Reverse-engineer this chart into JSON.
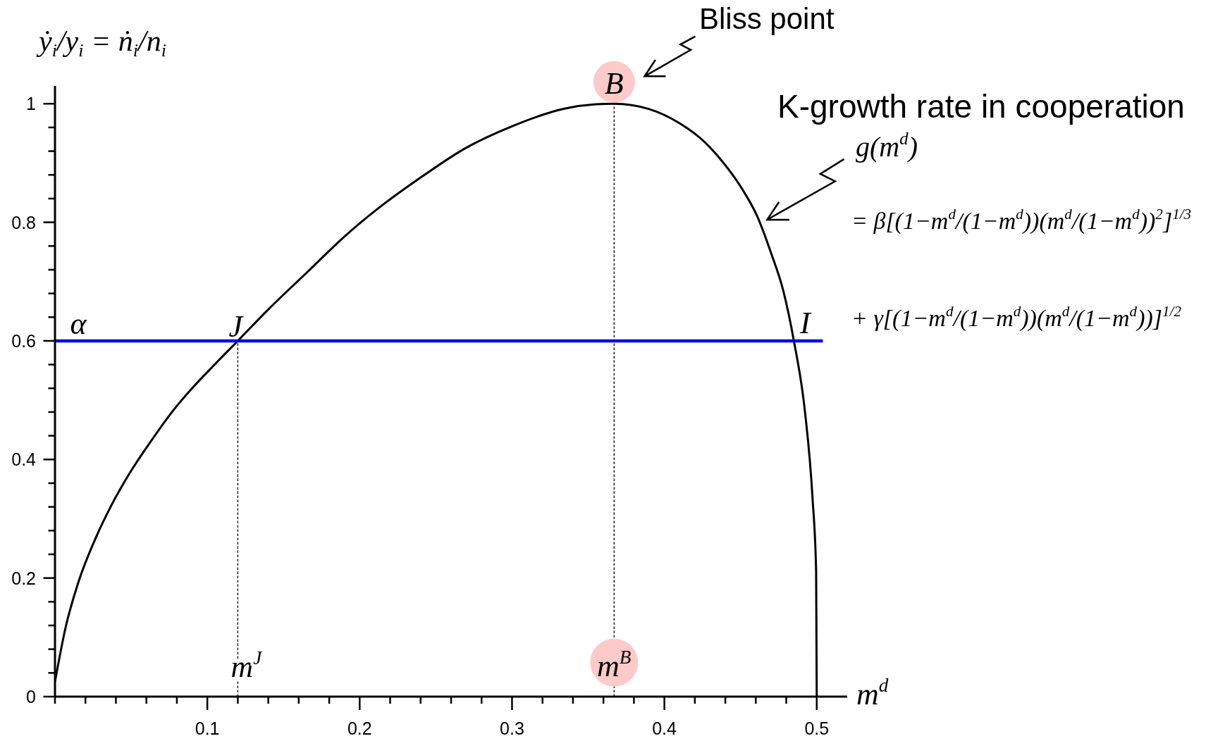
{
  "chart_data": {
    "type": "line",
    "xlabel": "m$^{d}$",
    "ylabel": "ẏ$_{i}$/y$_{i}$ = ṅ$_{i}$/n$_{i}$",
    "xlim": [
      0,
      0.52
    ],
    "ylim": [
      0,
      1.03
    ],
    "xticks": [
      {
        "value": 0,
        "label": null
      },
      {
        "value": 0.02,
        "label": null
      },
      {
        "value": 0.04,
        "label": null
      },
      {
        "value": 0.06,
        "label": null
      },
      {
        "value": 0.08,
        "label": null
      },
      0.1,
      {
        "value": 0.12,
        "label": null
      },
      {
        "value": 0.14,
        "label": null
      },
      {
        "value": 0.16,
        "label": null
      },
      {
        "value": 0.18,
        "label": null
      },
      0.2,
      {
        "value": 0.22,
        "label": null
      },
      {
        "value": 0.24,
        "label": null
      },
      {
        "value": 0.26,
        "label": null
      },
      {
        "value": 0.28,
        "label": null
      },
      0.3,
      {
        "value": 0.32,
        "label": null
      },
      {
        "value": 0.34,
        "label": null
      },
      {
        "value": 0.36,
        "label": null
      },
      {
        "value": 0.38,
        "label": null
      },
      0.4,
      {
        "value": 0.42,
        "label": null
      },
      {
        "value": 0.44,
        "label": null
      },
      {
        "value": 0.46,
        "label": null
      },
      {
        "value": 0.48,
        "label": null
      },
      0.5
    ],
    "yticks": [
      0,
      {
        "value": 0.04,
        "label": null
      },
      {
        "value": 0.08,
        "label": null
      },
      {
        "value": 0.12,
        "label": null
      },
      {
        "value": 0.16,
        "label": null
      },
      0.2,
      {
        "value": 0.24,
        "label": null
      },
      {
        "value": 0.28,
        "label": null
      },
      {
        "value": 0.32,
        "label": null
      },
      {
        "value": 0.36,
        "label": null
      },
      0.4,
      {
        "value": 0.44,
        "label": null
      },
      {
        "value": 0.48,
        "label": null
      },
      {
        "value": 0.52,
        "label": null
      },
      {
        "value": 0.56,
        "label": null
      },
      0.6,
      {
        "value": 0.64,
        "label": null
      },
      {
        "value": 0.68,
        "label": null
      },
      {
        "value": 0.72,
        "label": null
      },
      {
        "value": 0.76,
        "label": null
      },
      0.8,
      {
        "value": 0.84,
        "label": null
      },
      {
        "value": 0.88,
        "label": null
      },
      {
        "value": 0.92,
        "label": null
      },
      {
        "value": 0.96,
        "label": null
      },
      1
    ],
    "series": [
      {
        "color": "#000000",
        "x": [
          0,
          0.007,
          0.015,
          0.0275,
          0.0365,
          0.05,
          0.0625,
          0.078,
          0.09,
          0.104,
          0.12,
          0.14,
          0.166,
          0.19,
          0.2124,
          0.242,
          0.2694,
          0.2991,
          0.335,
          0.355,
          0.367,
          0.39,
          0.41,
          0.4266,
          0.4363,
          0.4506,
          0.4608,
          0.4702,
          0.478,
          0.485,
          0.4923,
          0.4972,
          0.4996,
          0.5
        ],
        "values": [
          0.025,
          0.117,
          0.19,
          0.272,
          0.32,
          0.381,
          0.429,
          0.484,
          0.52,
          0.558,
          0.6,
          0.653,
          0.717,
          0.776,
          0.824,
          0.879,
          0.925,
          0.961,
          0.992,
          0.999,
          1,
          0.991,
          0.967,
          0.935,
          0.908,
          0.858,
          0.811,
          0.747,
          0.685,
          0.6,
          0.48,
          0.336,
          0.211,
          0
        ]
      },
      {
        "name": "α",
        "color": "#0000ff",
        "x": [
          0,
          0.504
        ],
        "values": [
          0.6,
          0.6
        ]
      },
      {
        "color": "#000000",
        "line_style": "dashed",
        "x": [
          0.12,
          0.12
        ],
        "values": [
          0,
          0.6
        ]
      },
      {
        "color": "#000000",
        "line_style": "dashed",
        "x": [
          0.367,
          0.367
        ],
        "values": [
          0,
          1
        ]
      }
    ],
    "annotations": [
      "Bliss point",
      "K-growth rate in cooperation",
      "g(m$^{d}$)",
      "= β[(1−m$^{d}$/(1−m$^{d}$))(m$^{d}$/(1−m$^{d}$))$^{2}$]$^{1/3}$",
      "+ γ[(1−m$^{d}$/(1−m$^{d}$))(m$^{d}$/(1−m$^{d}$))]$^{1/2}$",
      {
        "text": "B",
        "x": 0.367,
        "y": 1
      },
      {
        "text": "J",
        "x": 0.12,
        "y": 0.6
      },
      {
        "text": "I",
        "x": 0.485,
        "y": 0.6
      },
      {
        "text": "m$^{J}$",
        "x": 0.12,
        "y": 0
      },
      {
        "text": "m$^{B}$",
        "x": 0.367,
        "y": 0
      }
    ]
  }
}
